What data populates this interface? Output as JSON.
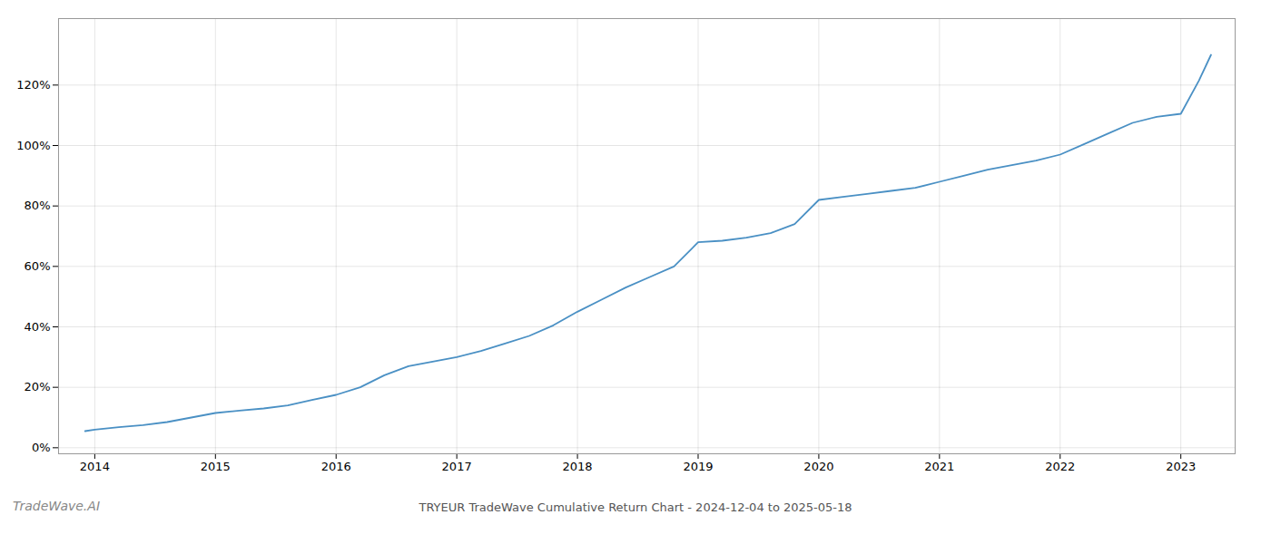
{
  "chart_data": {
    "type": "line",
    "title": "TRYEUR TradeWave Cumulative Return Chart - 2024-12-04 to 2025-05-18",
    "annotations": [
      "TradeWave.AI"
    ],
    "x": [
      2013.92,
      2014.0,
      2014.2,
      2014.4,
      2014.6,
      2014.8,
      2015.0,
      2015.2,
      2015.4,
      2015.6,
      2015.8,
      2016.0,
      2016.2,
      2016.4,
      2016.6,
      2016.8,
      2017.0,
      2017.2,
      2017.4,
      2017.6,
      2017.8,
      2018.0,
      2018.2,
      2018.4,
      2018.6,
      2018.8,
      2019.0,
      2019.2,
      2019.4,
      2019.6,
      2019.8,
      2020.0,
      2020.2,
      2020.4,
      2020.6,
      2020.8,
      2021.0,
      2021.2,
      2021.4,
      2021.6,
      2021.8,
      2022.0,
      2022.2,
      2022.4,
      2022.6,
      2022.8,
      2023.0,
      2023.15,
      2023.25
    ],
    "values": [
      0.055,
      0.06,
      0.068,
      0.075,
      0.085,
      0.1,
      0.115,
      0.123,
      0.13,
      0.14,
      0.158,
      0.175,
      0.2,
      0.24,
      0.27,
      0.285,
      0.3,
      0.32,
      0.345,
      0.37,
      0.405,
      0.45,
      0.49,
      0.53,
      0.565,
      0.6,
      0.68,
      0.685,
      0.695,
      0.71,
      0.74,
      0.82,
      0.83,
      0.84,
      0.85,
      0.86,
      0.88,
      0.9,
      0.92,
      0.935,
      0.95,
      0.97,
      1.005,
      1.04,
      1.075,
      1.095,
      1.105,
      1.215,
      1.3
    ],
    "color": "#4a90c4",
    "xlim": [
      2013.7,
      2023.45
    ],
    "xticks": [
      2014,
      2015,
      2016,
      2017,
      2018,
      2019,
      2020,
      2021,
      2022,
      2023
    ],
    "ylim": [
      -0.02,
      1.42
    ],
    "yticks": [
      {
        "value": 0.0,
        "label": "0%"
      },
      {
        "value": 0.2,
        "label": "20%"
      },
      {
        "value": 0.4,
        "label": "40%"
      },
      {
        "value": 0.6,
        "label": "60%"
      },
      {
        "value": 0.8,
        "label": "80%"
      },
      {
        "value": 1.0,
        "label": "100%"
      },
      {
        "value": 1.2,
        "label": "120%"
      }
    ],
    "grid": true
  }
}
